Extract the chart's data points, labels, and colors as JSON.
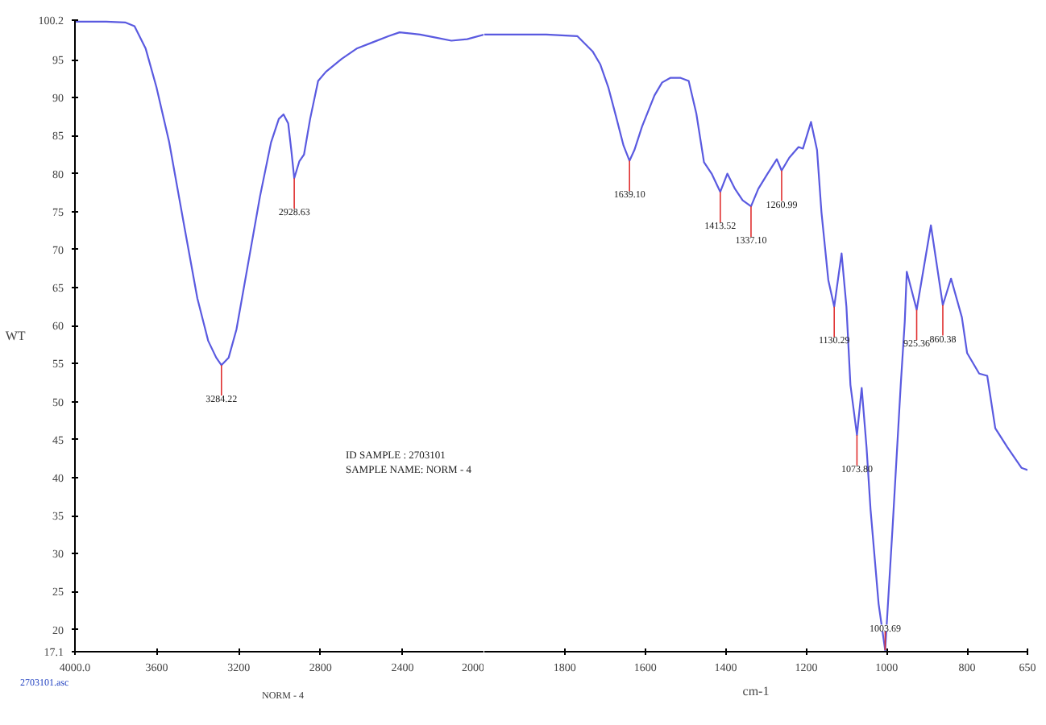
{
  "chart_data": [
    {
      "type": "line",
      "ylabel": "WT",
      "xlim": [
        4000,
        2000
      ],
      "ylim": [
        17.1,
        100.2
      ],
      "xticks": [
        {
          "value": 4000,
          "label": "4000.0"
        },
        3600,
        3200,
        2800,
        2400,
        2000
      ],
      "yticks": [
        17.1,
        20,
        25,
        30,
        35,
        40,
        45,
        50,
        55,
        60,
        65,
        70,
        75,
        80,
        85,
        90,
        95,
        100.2
      ],
      "grid": false,
      "marker": "none",
      "line_style": "solid",
      "series": [
        {
          "color": "#5a5ae0",
          "x": [
            4000,
            3847,
            3755,
            3709,
            3655,
            3602,
            3540,
            3464,
            3402,
            3349,
            3310,
            3284.22,
            3249,
            3211,
            3157,
            3096,
            3042,
            3004,
            2981,
            2958,
            2943,
            2928.63,
            2904,
            2881,
            2851,
            2812,
            2774,
            2697,
            2621,
            2544,
            2467,
            2414,
            2314,
            2238,
            2161,
            2084,
            2000
          ],
          "values": [
            100.0,
            100.0,
            99.9,
            99.4,
            96.5,
            91.4,
            84.2,
            72.8,
            63.6,
            58.0,
            55.8,
            54.8,
            55.8,
            59.5,
            67.7,
            77.0,
            84.1,
            87.2,
            87.8,
            86.6,
            83.1,
            79.4,
            81.6,
            82.5,
            87.2,
            92.2,
            93.4,
            95.1,
            96.5,
            97.3,
            98.1,
            98.6,
            98.3,
            97.9,
            97.5,
            97.7,
            98.3
          ]
        }
      ],
      "annotations": [
        {
          "text": "3284.22",
          "x": 3284.22,
          "y": 54.8
        },
        {
          "text": "2928.63",
          "x": 2928.63,
          "y": 79.4
        },
        "ID SAMPLE : 2703101",
        "SAMPLE NAME: NORM - 4",
        "2703101.asc",
        "NORM - 4"
      ]
    },
    {
      "type": "line",
      "xlabel": "cm-1",
      "xlim": [
        2000,
        650
      ],
      "ylim": [
        17.1,
        100.2
      ],
      "tick_labels": "x",
      "xticks": [
        1800,
        1600,
        1400,
        1200,
        1000,
        800,
        650
      ],
      "grid": false,
      "marker": "none",
      "line_style": "solid",
      "series": [
        {
          "color": "#5a5ae0",
          "x": [
            2000,
            1923,
            1846,
            1769,
            1731,
            1712,
            1692,
            1673,
            1654,
            1639.1,
            1627,
            1608,
            1577,
            1558,
            1538,
            1512,
            1492,
            1473,
            1454,
            1435,
            1413.52,
            1396,
            1377,
            1358,
            1337.1,
            1319,
            1296,
            1273,
            1260.99,
            1242,
            1219,
            1208,
            1188,
            1173,
            1162,
            1145,
            1130.29,
            1112,
            1100,
            1090,
            1073.8,
            1062,
            1050,
            1040,
            1020,
            1003.69,
            985,
            965,
            955,
            950,
            925.36,
            890,
            860.38,
            840,
            813,
            800,
            770,
            750,
            730,
            700,
            665,
            650
          ],
          "values": [
            98.3,
            98.3,
            98.3,
            98.1,
            96.1,
            94.4,
            91.4,
            87.6,
            83.7,
            81.7,
            83.1,
            86.2,
            90.3,
            92.0,
            92.6,
            92.6,
            92.2,
            87.9,
            81.5,
            80.0,
            77.6,
            80.0,
            78.0,
            76.5,
            75.7,
            78.0,
            80.0,
            81.9,
            80.4,
            82.1,
            83.5,
            83.3,
            86.8,
            83.1,
            74.9,
            66.0,
            62.5,
            69.5,
            62.5,
            52.2,
            45.6,
            51.8,
            44.0,
            35.8,
            23.4,
            17.3,
            33.7,
            52.2,
            60.5,
            67.1,
            62.1,
            73.2,
            62.7,
            66.2,
            61.1,
            56.4,
            53.7,
            53.4,
            46.5,
            44.0,
            41.3,
            41.0
          ]
        }
      ],
      "annotations": [
        {
          "text": "1639.10",
          "x": 1639.1,
          "y": 81.7
        },
        {
          "text": "1413.52",
          "x": 1413.52,
          "y": 77.6
        },
        {
          "text": "1337.10",
          "x": 1337.1,
          "y": 75.7
        },
        {
          "text": "1260.99",
          "x": 1260.99,
          "y": 80.4
        },
        {
          "text": "1130.29",
          "x": 1130.29,
          "y": 62.5
        },
        {
          "text": "1073.80",
          "x": 1073.8,
          "y": 45.6
        },
        {
          "text": "1003.69",
          "x": 1003.69,
          "y": 17.3
        },
        {
          "text": "925.36",
          "x": 925.36,
          "y": 62.1
        },
        {
          "text": "860.38",
          "x": 860.38,
          "y": 62.7
        }
      ]
    }
  ]
}
